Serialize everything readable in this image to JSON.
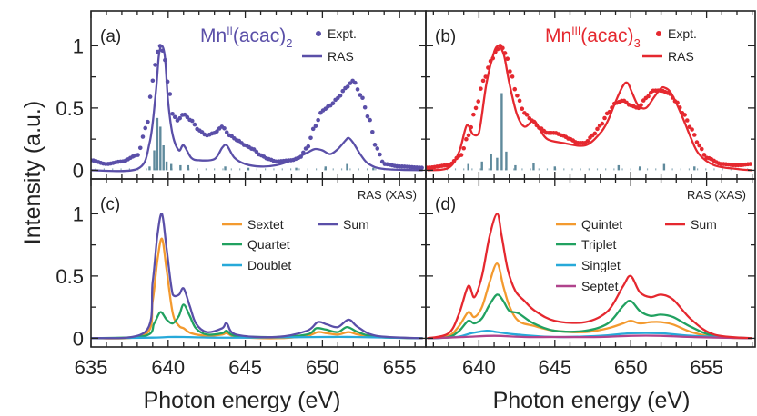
{
  "figure": {
    "ylabel": "Intensity (a.u.)",
    "xlabel": "Photon energy (eV)"
  },
  "colors": {
    "purple": "#5a4fa8",
    "red": "#e5282f",
    "orange": "#f39a2f",
    "green": "#21a160",
    "cyan": "#27a9d9",
    "magenta": "#b0438c",
    "stick": "#5f8a9c"
  },
  "chart_data": [
    {
      "type": "line",
      "panel_tag": "(a)",
      "compound": {
        "prefix": "Mn",
        "superscript": "II",
        "suffix": "(acac)",
        "subscript": "2"
      },
      "xlim": [
        635,
        656.7
      ],
      "ylim": [
        -0.07,
        1.28
      ],
      "yticks": [
        0,
        0.5,
        1
      ],
      "ytick_labels": [
        "0",
        "0.5",
        "1"
      ],
      "series": [
        {
          "name": "Expt.",
          "style": "dots",
          "color": "purple",
          "x": [
            635,
            636,
            637,
            638,
            638.6,
            639,
            639.3,
            639.5,
            639.7,
            640,
            640.3,
            640.6,
            641,
            641.5,
            642,
            642.5,
            643,
            643.5,
            644,
            644.5,
            645,
            645.5,
            646,
            646.5,
            647,
            648,
            648.5,
            649,
            649.5,
            650,
            650.5,
            651,
            651.5,
            652,
            652.5,
            653,
            653.5,
            654,
            655,
            656.5
          ],
          "y": [
            0.08,
            0.05,
            0.07,
            0.12,
            0.35,
            0.72,
            0.95,
            1.0,
            0.95,
            0.7,
            0.45,
            0.4,
            0.45,
            0.4,
            0.32,
            0.28,
            0.3,
            0.35,
            0.28,
            0.24,
            0.2,
            0.17,
            0.12,
            0.09,
            0.07,
            0.08,
            0.1,
            0.18,
            0.35,
            0.48,
            0.52,
            0.58,
            0.66,
            0.72,
            0.6,
            0.42,
            0.18,
            0.05,
            0.03,
            0.02
          ]
        },
        {
          "name": "RAS",
          "style": "line",
          "color": "purple",
          "x": [
            635,
            638,
            638.8,
            639.2,
            639.4,
            639.6,
            639.8,
            640,
            640.3,
            640.7,
            641,
            641.5,
            642,
            643,
            643.5,
            643.8,
            644.3,
            645,
            646,
            647,
            648,
            649,
            649.5,
            650,
            650.5,
            651,
            651.5,
            651.7,
            652,
            652.5,
            653,
            654,
            656.5
          ],
          "y": [
            0.0,
            0.01,
            0.22,
            0.62,
            0.92,
            1.0,
            0.9,
            0.55,
            0.28,
            0.16,
            0.2,
            0.1,
            0.08,
            0.09,
            0.18,
            0.2,
            0.1,
            0.05,
            0.03,
            0.04,
            0.08,
            0.14,
            0.17,
            0.16,
            0.13,
            0.17,
            0.24,
            0.26,
            0.22,
            0.12,
            0.05,
            0.01,
            0.0
          ]
        }
      ],
      "sticks": {
        "x": [
          638.8,
          639.1,
          639.3,
          639.5,
          639.7,
          639.9,
          640.2,
          640.8,
          641.3,
          643.7,
          645.2,
          648.3,
          650.2,
          651.6,
          653.3
        ],
        "y": [
          0.03,
          0.16,
          0.42,
          0.35,
          0.2,
          0.07,
          0.05,
          0.04,
          0.04,
          0.03,
          0.02,
          0.02,
          0.03,
          0.05,
          0.02
        ]
      }
    },
    {
      "type": "line",
      "panel_tag": "(b)",
      "compound": {
        "prefix": "Mn",
        "superscript": "III",
        "suffix": "(acac)",
        "subscript": "3"
      },
      "xlim": [
        636.5,
        658.2
      ],
      "ylim": [
        -0.07,
        1.28
      ],
      "series": [
        {
          "name": "Expt.",
          "style": "dots",
          "color": "red",
          "x": [
            636.6,
            638,
            638.8,
            639.3,
            639.8,
            640.3,
            640.8,
            641.2,
            641.4,
            641.6,
            641.8,
            642.1,
            642.5,
            643,
            643.5,
            644,
            644.5,
            645,
            645.5,
            646,
            646.5,
            647,
            647.5,
            648,
            648.5,
            649,
            649.5,
            650,
            650.5,
            651,
            651.5,
            652,
            652.5,
            653,
            653.5,
            654,
            654.5,
            655,
            656,
            657,
            658
          ],
          "y": [
            0.02,
            0.04,
            0.12,
            0.28,
            0.5,
            0.72,
            0.88,
            0.97,
            1.0,
            0.98,
            0.92,
            0.78,
            0.6,
            0.46,
            0.4,
            0.34,
            0.3,
            0.3,
            0.28,
            0.25,
            0.22,
            0.22,
            0.28,
            0.36,
            0.46,
            0.54,
            0.56,
            0.52,
            0.5,
            0.58,
            0.64,
            0.64,
            0.62,
            0.55,
            0.45,
            0.33,
            0.2,
            0.1,
            0.05,
            0.04,
            0.05
          ]
        },
        {
          "name": "RAS",
          "style": "line",
          "color": "red",
          "x": [
            636.6,
            638,
            638.7,
            639.2,
            639.6,
            640,
            640.5,
            641,
            641.3,
            641.5,
            641.7,
            642,
            642.5,
            643,
            643.6,
            644,
            644.5,
            645.5,
            647,
            648,
            648.5,
            649,
            649.5,
            649.8,
            650.1,
            650.5,
            651,
            651.5,
            652,
            652.3,
            652.6,
            653,
            653.5,
            654,
            654.5,
            655.5,
            657,
            658
          ],
          "y": [
            0.0,
            0.02,
            0.15,
            0.36,
            0.29,
            0.3,
            0.7,
            0.95,
            1.0,
            0.97,
            0.9,
            0.7,
            0.45,
            0.35,
            0.4,
            0.33,
            0.25,
            0.22,
            0.2,
            0.3,
            0.4,
            0.55,
            0.68,
            0.7,
            0.62,
            0.52,
            0.5,
            0.58,
            0.66,
            0.66,
            0.63,
            0.54,
            0.4,
            0.25,
            0.13,
            0.04,
            0.01,
            0.0
          ]
        }
      ],
      "sticks": {
        "x": [
          639.3,
          640.2,
          640.8,
          641.2,
          641.5,
          641.8,
          642.4,
          643.6,
          645,
          649.2,
          650.6,
          652.2,
          654.2
        ],
        "y": [
          0.05,
          0.07,
          0.13,
          0.1,
          0.62,
          0.15,
          0.04,
          0.06,
          0.03,
          0.04,
          0.03,
          0.05,
          0.03
        ]
      }
    },
    {
      "type": "line",
      "panel_tag": "(c)",
      "title": "RAS (XAS)",
      "xlim": [
        635,
        656.7
      ],
      "ylim": [
        -0.07,
        1.28
      ],
      "yticks": [
        0,
        0.5,
        1
      ],
      "ytick_labels": [
        "0",
        "0.5",
        "1"
      ],
      "xticks": [
        635,
        640,
        645,
        650,
        655
      ],
      "xtick_labels": [
        "635",
        "640",
        "645",
        "650",
        "655"
      ],
      "series": [
        {
          "name": "Sextet",
          "style": "line",
          "color": "orange",
          "x": [
            635,
            638.5,
            639,
            639.3,
            639.6,
            639.9,
            640.3,
            640.7,
            641,
            641.5,
            642.5,
            643.5,
            643.8,
            644.5,
            647,
            649,
            649.7,
            650.3,
            651,
            651.7,
            652.3,
            653.5,
            656.5
          ],
          "y": [
            0.0,
            0.03,
            0.3,
            0.62,
            0.8,
            0.55,
            0.2,
            0.1,
            0.08,
            0.04,
            0.02,
            0.03,
            0.04,
            0.01,
            0.0,
            0.02,
            0.05,
            0.04,
            0.03,
            0.05,
            0.03,
            0.01,
            0.0
          ]
        },
        {
          "name": "Quartet",
          "style": "line",
          "color": "green",
          "x": [
            635,
            638.5,
            639.1,
            639.5,
            639.9,
            640.3,
            640.7,
            641,
            641.4,
            641.8,
            642.5,
            643.5,
            643.8,
            644.4,
            647,
            649,
            649.6,
            650.2,
            651,
            651.6,
            652.3,
            653.5,
            656.5
          ],
          "y": [
            0.0,
            0.02,
            0.12,
            0.21,
            0.15,
            0.12,
            0.18,
            0.27,
            0.18,
            0.08,
            0.03,
            0.04,
            0.06,
            0.02,
            0.01,
            0.03,
            0.08,
            0.07,
            0.05,
            0.09,
            0.05,
            0.01,
            0.0
          ]
        },
        {
          "name": "Doublet",
          "style": "line",
          "color": "cyan",
          "x": [
            635,
            639,
            640,
            641,
            643,
            645,
            650,
            652,
            656.5
          ],
          "y": [
            0.0,
            0.005,
            0.01,
            0.01,
            0.005,
            0.005,
            0.01,
            0.01,
            0.0
          ]
        },
        {
          "name": "Sum",
          "style": "line",
          "color": "purple",
          "x": [
            635,
            638.5,
            639,
            639.3,
            639.6,
            639.9,
            640.3,
            640.7,
            641,
            641.4,
            641.8,
            642.5,
            643.5,
            643.8,
            644.4,
            647,
            649,
            649.7,
            650.3,
            651,
            651.7,
            652.3,
            653.5,
            656.5
          ],
          "y": [
            0.0,
            0.05,
            0.45,
            0.82,
            1.0,
            0.72,
            0.35,
            0.35,
            0.4,
            0.26,
            0.12,
            0.05,
            0.08,
            0.12,
            0.03,
            0.01,
            0.06,
            0.13,
            0.11,
            0.09,
            0.15,
            0.09,
            0.02,
            0.0
          ]
        }
      ]
    },
    {
      "type": "line",
      "panel_tag": "(d)",
      "title": "RAS (XAS)",
      "xlim": [
        636.5,
        658.2
      ],
      "ylim": [
        -0.07,
        1.28
      ],
      "xticks": [
        640,
        645,
        650,
        655
      ],
      "xtick_labels": [
        "640",
        "645",
        "650",
        "655"
      ],
      "series": [
        {
          "name": "Quintet",
          "style": "line",
          "color": "orange",
          "x": [
            636.6,
            638,
            638.7,
            639.3,
            639.7,
            640.2,
            640.7,
            641.2,
            641.6,
            642,
            642.6,
            643.6,
            645,
            647,
            648.5,
            649.5,
            650,
            650.6,
            651.3,
            652,
            652.8,
            654,
            655.5,
            658
          ],
          "y": [
            0.0,
            0.02,
            0.1,
            0.21,
            0.17,
            0.25,
            0.45,
            0.6,
            0.42,
            0.26,
            0.14,
            0.1,
            0.06,
            0.05,
            0.08,
            0.12,
            0.14,
            0.12,
            0.13,
            0.13,
            0.11,
            0.05,
            0.01,
            0.0
          ]
        },
        {
          "name": "Triplet",
          "style": "line",
          "color": "green",
          "x": [
            636.6,
            638,
            638.7,
            639.3,
            639.7,
            640.2,
            640.7,
            641.2,
            641.6,
            642,
            642.6,
            643.6,
            645,
            647,
            648.5,
            649.5,
            650,
            650.6,
            651.3,
            652,
            652.8,
            654,
            655.5,
            658
          ],
          "y": [
            0.0,
            0.01,
            0.06,
            0.14,
            0.12,
            0.16,
            0.27,
            0.35,
            0.3,
            0.22,
            0.2,
            0.12,
            0.06,
            0.06,
            0.12,
            0.26,
            0.3,
            0.22,
            0.18,
            0.19,
            0.17,
            0.09,
            0.02,
            0.0
          ]
        },
        {
          "name": "Singlet",
          "style": "line",
          "color": "cyan",
          "x": [
            636.6,
            638.5,
            639.5,
            640.5,
            641.2,
            642.5,
            645,
            648,
            650,
            652,
            654,
            658
          ],
          "y": [
            0.0,
            0.01,
            0.04,
            0.06,
            0.05,
            0.03,
            0.01,
            0.02,
            0.04,
            0.04,
            0.02,
            0.0
          ]
        },
        {
          "name": "Septet",
          "style": "line",
          "color": "magenta",
          "x": [
            636.6,
            639,
            641,
            643,
            645,
            648,
            650,
            652,
            654,
            658
          ],
          "y": [
            0.0,
            0.01,
            0.02,
            0.01,
            0.01,
            0.01,
            0.02,
            0.02,
            0.01,
            0.0
          ]
        },
        {
          "name": "Sum",
          "style": "line",
          "color": "red",
          "x": [
            636.6,
            638,
            638.7,
            639.3,
            639.7,
            640.2,
            640.7,
            641.2,
            641.5,
            641.9,
            642.4,
            643,
            643.7,
            645,
            647,
            648.5,
            649.5,
            650,
            650.6,
            651.3,
            652,
            652.8,
            654,
            655.5,
            658
          ],
          "y": [
            0.0,
            0.04,
            0.2,
            0.42,
            0.33,
            0.5,
            0.82,
            1.0,
            0.82,
            0.55,
            0.38,
            0.3,
            0.22,
            0.14,
            0.13,
            0.22,
            0.42,
            0.5,
            0.37,
            0.33,
            0.35,
            0.31,
            0.15,
            0.03,
            0.0
          ]
        }
      ]
    }
  ]
}
